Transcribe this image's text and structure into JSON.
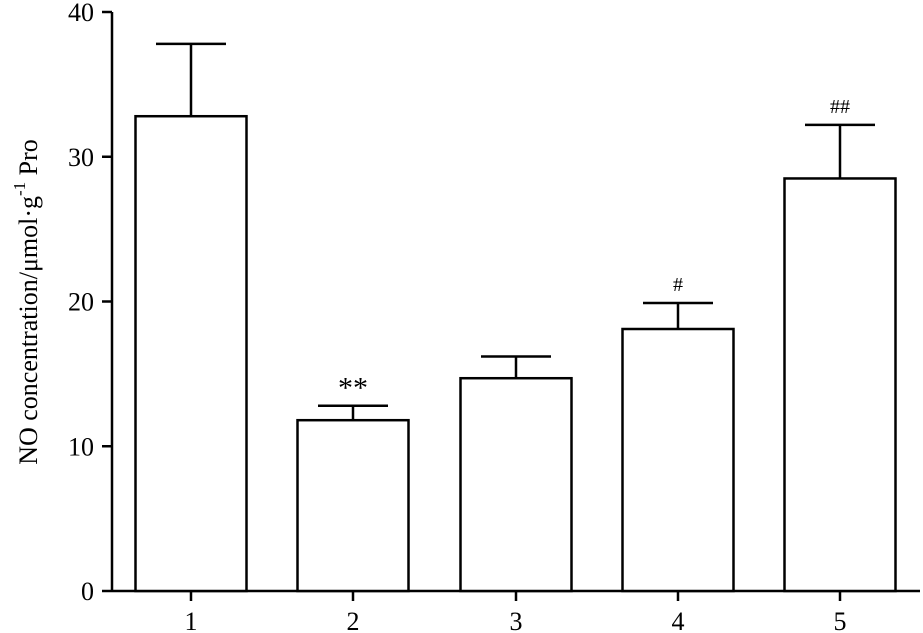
{
  "chart_data": {
    "type": "bar",
    "title": "",
    "xlabel": "",
    "ylabel": {
      "main": "NO concentration/μmol·g",
      "superscript": "-1",
      "suffix": " Pro"
    },
    "categories": [
      "1",
      "2",
      "3",
      "4",
      "5"
    ],
    "values": [
      32.8,
      11.8,
      14.7,
      18.1,
      28.5
    ],
    "error_bars": [
      5.0,
      1.0,
      1.5,
      1.8,
      3.7
    ],
    "significance": [
      "",
      "**",
      "",
      "#",
      "##"
    ],
    "ylim": [
      0,
      40
    ],
    "yticks": [
      "0",
      "10",
      "20",
      "30",
      "40"
    ],
    "grid": false,
    "legend": "none",
    "colors": {
      "bar_fill": "#ffffff",
      "bar_stroke": "#000000",
      "axis": "#000000"
    }
  }
}
